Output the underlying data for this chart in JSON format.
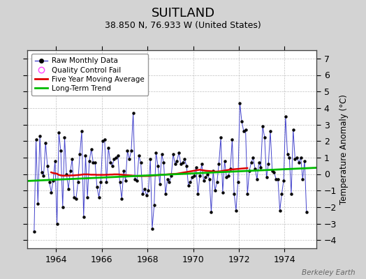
{
  "title": "SUITLAND",
  "subtitle": "38.850 N, 76.933 W (United States)",
  "ylabel": "Temperature Anomaly (°C)",
  "watermark": "Berkeley Earth",
  "ylim": [
    -4.5,
    7.5
  ],
  "yticks": [
    -4,
    -3,
    -2,
    -1,
    0,
    1,
    2,
    3,
    4,
    5,
    6,
    7
  ],
  "xlim_start": 1962.75,
  "xlim_end": 1975.4,
  "xticks": [
    1964,
    1966,
    1968,
    1970,
    1972,
    1974
  ],
  "bg_color": "#d3d3d3",
  "plot_bg_color": "#ffffff",
  "grid_color": "#c0c0c0",
  "raw_line_color": "#4444cc",
  "raw_marker_color": "#000000",
  "moving_avg_color": "#dd0000",
  "trend_color": "#00bb00",
  "legend_border_color": "#999999",
  "raw_data_x": [
    1963.042,
    1963.125,
    1963.208,
    1963.292,
    1963.375,
    1963.458,
    1963.542,
    1963.625,
    1963.708,
    1963.792,
    1963.875,
    1963.958,
    1964.042,
    1964.125,
    1964.208,
    1964.292,
    1964.375,
    1964.458,
    1964.542,
    1964.625,
    1964.708,
    1964.792,
    1964.875,
    1964.958,
    1965.042,
    1965.125,
    1965.208,
    1965.292,
    1965.375,
    1965.458,
    1965.542,
    1965.625,
    1965.708,
    1965.792,
    1965.875,
    1965.958,
    1966.042,
    1966.125,
    1966.208,
    1966.292,
    1966.375,
    1966.458,
    1966.542,
    1966.625,
    1966.708,
    1966.792,
    1966.875,
    1966.958,
    1967.042,
    1967.125,
    1967.208,
    1967.292,
    1967.375,
    1967.458,
    1967.542,
    1967.625,
    1967.708,
    1967.792,
    1967.875,
    1967.958,
    1968.042,
    1968.125,
    1968.208,
    1968.292,
    1968.375,
    1968.458,
    1968.542,
    1968.625,
    1968.708,
    1968.792,
    1968.875,
    1968.958,
    1969.042,
    1969.125,
    1969.208,
    1969.292,
    1969.375,
    1969.458,
    1969.542,
    1969.625,
    1969.708,
    1969.792,
    1969.875,
    1969.958,
    1970.042,
    1970.125,
    1970.208,
    1970.292,
    1970.375,
    1970.458,
    1970.542,
    1970.625,
    1970.708,
    1970.792,
    1970.875,
    1970.958,
    1971.042,
    1971.125,
    1971.208,
    1971.292,
    1971.375,
    1971.458,
    1971.542,
    1971.625,
    1971.708,
    1971.792,
    1971.875,
    1971.958,
    1972.042,
    1972.125,
    1972.208,
    1972.292,
    1972.375,
    1972.458,
    1972.542,
    1972.625,
    1972.708,
    1972.792,
    1972.875,
    1972.958,
    1973.042,
    1973.125,
    1973.208,
    1973.292,
    1973.375,
    1973.458,
    1973.542,
    1973.625,
    1973.708,
    1973.792,
    1973.875,
    1973.958,
    1974.042,
    1974.125,
    1974.208,
    1974.292,
    1974.375,
    1974.458,
    1974.542,
    1974.625,
    1974.708,
    1974.792,
    1974.875,
    1974.958
  ],
  "raw_data_y": [
    -3.5,
    2.1,
    -1.8,
    2.3,
    0.1,
    -0.1,
    1.9,
    0.5,
    -0.5,
    -1.1,
    -0.4,
    0.8,
    -3.0,
    2.5,
    1.4,
    -2.0,
    2.2,
    0.0,
    -0.9,
    0.2,
    0.9,
    -1.4,
    -1.5,
    -0.5,
    1.2,
    2.6,
    -2.6,
    1.1,
    -1.4,
    0.8,
    1.5,
    0.7,
    0.7,
    -0.8,
    -1.4,
    -0.5,
    2.0,
    2.1,
    -0.5,
    1.6,
    0.7,
    0.5,
    0.9,
    1.0,
    1.1,
    -0.5,
    -1.5,
    0.2,
    -0.4,
    1.4,
    0.9,
    1.4,
    3.7,
    -0.3,
    -0.4,
    1.1,
    0.7,
    -1.2,
    -0.9,
    -1.3,
    -1.0,
    0.9,
    -3.3,
    -1.9,
    1.3,
    0.5,
    -0.6,
    1.2,
    0.7,
    -1.2,
    -0.3,
    -0.5,
    -0.1,
    1.2,
    0.6,
    0.8,
    1.3,
    0.6,
    0.7,
    0.9,
    0.5,
    -0.7,
    -0.5,
    -0.2,
    -0.1,
    0.4,
    -1.2,
    -0.1,
    0.6,
    -0.4,
    -0.2,
    0.0,
    -0.3,
    -2.3,
    0.2,
    -1.0,
    -0.5,
    0.6,
    2.2,
    -1.1,
    0.8,
    -0.2,
    -0.1,
    0.3,
    2.1,
    -1.2,
    -2.2,
    -0.5,
    4.3,
    3.2,
    2.6,
    2.7,
    -1.2,
    0.2,
    0.7,
    1.0,
    0.3,
    -0.3,
    0.7,
    0.4,
    2.9,
    2.2,
    -0.2,
    0.6,
    2.6,
    0.2,
    0.1,
    -0.3,
    -0.3,
    -2.2,
    -1.2,
    -0.4,
    3.5,
    1.2,
    1.0,
    -1.2,
    2.7,
    0.9,
    1.0,
    0.7,
    1.0,
    -0.3,
    0.8,
    -2.3
  ],
  "moving_avg_x": [
    1963.79,
    1963.87,
    1963.96,
    1964.04,
    1964.12,
    1964.21,
    1964.29,
    1964.37,
    1964.46,
    1964.54,
    1964.62,
    1964.71,
    1964.79,
    1964.87,
    1964.96,
    1965.04,
    1965.12,
    1965.21,
    1965.29,
    1965.37,
    1965.46,
    1965.54,
    1965.62,
    1965.71,
    1965.79,
    1965.87,
    1965.96,
    1966.04,
    1966.12,
    1966.21,
    1966.29,
    1966.37,
    1966.46,
    1966.54,
    1966.62,
    1966.71,
    1966.79,
    1966.87,
    1966.96,
    1967.04,
    1967.12,
    1967.21,
    1967.29,
    1967.37,
    1967.46,
    1967.54,
    1967.62,
    1967.71,
    1967.79,
    1967.87,
    1967.96,
    1968.04,
    1968.12,
    1968.21,
    1968.29,
    1968.37,
    1968.46,
    1968.54,
    1968.62,
    1968.71,
    1968.79,
    1968.87,
    1968.96,
    1969.04,
    1969.12,
    1969.21,
    1969.29,
    1969.37,
    1969.46,
    1969.54,
    1969.62,
    1969.71,
    1969.79,
    1969.87,
    1969.96,
    1970.04,
    1970.12,
    1970.21,
    1970.29,
    1970.37,
    1970.46,
    1970.54,
    1970.62,
    1970.71,
    1970.79,
    1970.87,
    1970.96,
    1971.04,
    1971.12,
    1971.21,
    1971.29,
    1971.37,
    1971.46,
    1971.54,
    1971.62,
    1971.71,
    1971.79,
    1971.87,
    1971.96,
    1972.04,
    1972.12,
    1972.21,
    1972.29,
    1972.37
  ],
  "moving_avg_y": [
    0.1,
    0.06,
    0.04,
    0.02,
    -0.05,
    -0.08,
    -0.1,
    -0.1,
    -0.1,
    -0.1,
    -0.09,
    -0.08,
    -0.08,
    -0.07,
    -0.06,
    -0.05,
    -0.04,
    -0.02,
    -0.02,
    -0.02,
    -0.03,
    -0.04,
    -0.04,
    -0.04,
    -0.05,
    -0.05,
    -0.05,
    -0.05,
    -0.05,
    -0.04,
    -0.04,
    -0.03,
    -0.03,
    -0.02,
    -0.02,
    -0.02,
    -0.03,
    -0.04,
    -0.05,
    -0.06,
    -0.07,
    -0.08,
    -0.09,
    -0.1,
    -0.11,
    -0.12,
    -0.12,
    -0.12,
    -0.12,
    -0.12,
    -0.12,
    -0.12,
    -0.11,
    -0.1,
    -0.09,
    -0.08,
    -0.07,
    -0.06,
    -0.05,
    -0.04,
    -0.03,
    -0.02,
    -0.01,
    0.0,
    0.0,
    0.01,
    0.02,
    0.04,
    0.06,
    0.08,
    0.1,
    0.12,
    0.14,
    0.16,
    0.18,
    0.2,
    0.22,
    0.24,
    0.26,
    0.24,
    0.22,
    0.2,
    0.19,
    0.18,
    0.17,
    0.16,
    0.15,
    0.15,
    0.16,
    0.17,
    0.19,
    0.21,
    0.23,
    0.25,
    0.27,
    0.28,
    0.29,
    0.3,
    0.31,
    0.32,
    0.33,
    0.34,
    0.35,
    0.36
  ],
  "trend_x": [
    1962.75,
    1975.4
  ],
  "trend_y": [
    -0.42,
    0.38
  ]
}
